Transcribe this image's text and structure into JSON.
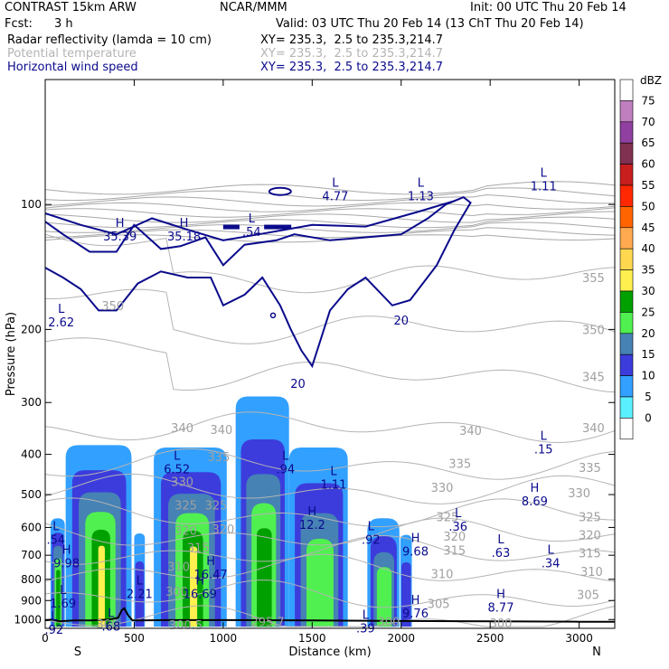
{
  "header": {
    "model": "CONTRAST 15km ARW",
    "center": "NCAR/MMM",
    "init": "Init: 00 UTC Thu 20 Feb 14",
    "fcst_label": "Fcst:",
    "fcst_value": "3 h",
    "valid": "Valid: 03 UTC Thu 20 Feb 14 (13 ChT Thu 20 Feb 14)",
    "fields": [
      {
        "name": "Radar reflectivity (lamda = 10 cm)",
        "xy": "XY= 235.3,  2.5 to 235.3,214.7",
        "color": "#000000"
      },
      {
        "name": "Potential temperature",
        "xy": "XY= 235.3,  2.5 to 235.3,214.7",
        "color": "#b4b4b4"
      },
      {
        "name": "Horizontal wind speed",
        "xy": "XY= 235.3,  2.5 to 235.3,214.7",
        "color": "#0a0a8c"
      }
    ]
  },
  "chart_data": {
    "type": "heatmap",
    "xlabel": "Distance (km)",
    "ylabel": "Pressure (hPa)",
    "x_ticks": [
      0,
      500,
      1000,
      1500,
      2000,
      2500,
      3000
    ],
    "y_ticks": [
      100,
      200,
      300,
      400,
      500,
      600,
      700,
      800,
      900,
      1000
    ],
    "xlim": [
      0,
      3200
    ],
    "ylim": [
      1050,
      50
    ],
    "y_scale": "log",
    "x_end_labels": {
      "left": "S",
      "right": "N"
    },
    "colorbar": {
      "unit": "dBZ",
      "ticks": [
        "75",
        "70",
        "65",
        "60",
        "55",
        "50",
        "45",
        "40",
        "35",
        "30",
        "25",
        "20",
        "15",
        "10",
        "5",
        "0"
      ],
      "colors": [
        "#ffffff",
        "#c080c0",
        "#9040a0",
        "#803050",
        "#c81e1e",
        "#ff2800",
        "#ff6400",
        "#ffaa50",
        "#ffd850",
        "#fff050",
        "#00a000",
        "#50f050",
        "#4682b4",
        "#3c3cdc",
        "#32a0ff",
        "#5af0ff",
        "#ffffff"
      ]
    },
    "reflectivity_columns": [
      {
        "x0": 30,
        "x1": 110,
        "p_top": 570,
        "max_dbz": 25
      },
      {
        "x0": 115,
        "x1": 485,
        "p_top": 380,
        "max_dbz": 30
      },
      {
        "x0": 500,
        "x1": 560,
        "p_top": 620,
        "max_dbz": 10
      },
      {
        "x0": 610,
        "x1": 1020,
        "p_top": 385,
        "max_dbz": 30
      },
      {
        "x0": 1070,
        "x1": 1370,
        "p_top": 290,
        "max_dbz": 25
      },
      {
        "x0": 1370,
        "x1": 1700,
        "p_top": 385,
        "max_dbz": 20
      },
      {
        "x0": 1810,
        "x1": 1990,
        "p_top": 570,
        "max_dbz": 20
      },
      {
        "x0": 1995,
        "x1": 2060,
        "p_top": 625,
        "max_dbz": 10
      }
    ],
    "theta_labels": [
      {
        "text": "355",
        "x": 3080,
        "p": 150
      },
      {
        "text": "350",
        "x": 3080,
        "p": 200
      },
      {
        "text": "350",
        "x": 380,
        "p": 175
      },
      {
        "text": "345",
        "x": 3080,
        "p": 260
      },
      {
        "text": "340",
        "x": 3080,
        "p": 345
      },
      {
        "text": "340",
        "x": 770,
        "p": 345
      },
      {
        "text": "340",
        "x": 990,
        "p": 348
      },
      {
        "text": "340",
        "x": 2390,
        "p": 350
      },
      {
        "text": "335",
        "x": 3060,
        "p": 430
      },
      {
        "text": "335",
        "x": 975,
        "p": 405
      },
      {
        "text": "335",
        "x": 2330,
        "p": 420
      },
      {
        "text": "330",
        "x": 3000,
        "p": 495
      },
      {
        "text": "330",
        "x": 770,
        "p": 465
      },
      {
        "text": "330",
        "x": 2230,
        "p": 480
      },
      {
        "text": "325",
        "x": 3060,
        "p": 565
      },
      {
        "text": "325",
        "x": 790,
        "p": 530
      },
      {
        "text": "325",
        "x": 960,
        "p": 530
      },
      {
        "text": "325",
        "x": 2260,
        "p": 565
      },
      {
        "text": "320",
        "x": 3060,
        "p": 625
      },
      {
        "text": "320",
        "x": 790,
        "p": 610
      },
      {
        "text": "320",
        "x": 1000,
        "p": 605
      },
      {
        "text": "320",
        "x": 2300,
        "p": 630
      },
      {
        "text": "315",
        "x": 3060,
        "p": 690
      },
      {
        "text": "315",
        "x": 860,
        "p": 670
      },
      {
        "text": "315",
        "x": 2300,
        "p": 680
      },
      {
        "text": "310",
        "x": 3070,
        "p": 765
      },
      {
        "text": "310",
        "x": 750,
        "p": 745
      },
      {
        "text": "310",
        "x": 2230,
        "p": 775
      },
      {
        "text": "305",
        "x": 3050,
        "p": 870
      },
      {
        "text": "305",
        "x": 2210,
        "p": 915
      },
      {
        "text": "300",
        "x": 740,
        "p": 855
      },
      {
        "text": "300",
        "x": 2560,
        "p": 1020
      },
      {
        "text": "300",
        "x": 1930,
        "p": 1010
      },
      {
        "text": "300.5",
        "x": 790,
        "p": 1030
      },
      {
        "text": "295.7",
        "x": 1250,
        "p": 1010
      },
      {
        "text": "300",
        "x": 350,
        "p": 1025
      }
    ],
    "wind_labels": [
      {
        "text": "20",
        "x": 2000,
        "p": 190
      },
      {
        "text": "20",
        "x": 1420,
        "p": 270
      }
    ],
    "extrema": [
      {
        "kind": "H",
        "value": "35.39",
        "x": 420,
        "p": 115
      },
      {
        "kind": "H",
        "value": "35.18",
        "x": 780,
        "p": 115
      },
      {
        "kind": "L",
        "value": ".54",
        "x": 1160,
        "p": 112
      },
      {
        "kind": "L",
        "value": "4.77",
        "x": 1630,
        "p": 92
      },
      {
        "kind": "L",
        "value": "1.13",
        "x": 2110,
        "p": 92
      },
      {
        "kind": "L",
        "value": "1.11",
        "x": 2800,
        "p": 87
      },
      {
        "kind": "L",
        "value": "2.62",
        "x": 90,
        "p": 185
      },
      {
        "kind": "L",
        "value": "6.52",
        "x": 740,
        "p": 418
      },
      {
        "kind": "L",
        "value": ".94",
        "x": 1350,
        "p": 418
      },
      {
        "kind": "L",
        "value": "1.11",
        "x": 1620,
        "p": 455
      },
      {
        "kind": "L",
        "value": ".15",
        "x": 2800,
        "p": 375
      },
      {
        "kind": "H",
        "value": "8.69",
        "x": 2750,
        "p": 500
      },
      {
        "kind": "H",
        "value": "12.2",
        "x": 1500,
        "p": 570
      },
      {
        "kind": "L",
        "value": ".36",
        "x": 2320,
        "p": 575
      },
      {
        "kind": "L",
        "value": ".92",
        "x": 1830,
        "p": 618
      },
      {
        "kind": "H",
        "value": "9.68",
        "x": 2080,
        "p": 660
      },
      {
        "kind": "L",
        "value": ".63",
        "x": 2560,
        "p": 665
      },
      {
        "kind": "L",
        "value": ".34",
        "x": 2840,
        "p": 705
      },
      {
        "kind": "L",
        "value": ".54",
        "x": 60,
        "p": 618
      },
      {
        "kind": "H",
        "value": "9.98",
        "x": 120,
        "p": 705
      },
      {
        "kind": "H",
        "value": "16.47",
        "x": 930,
        "p": 750
      },
      {
        "kind": "L",
        "value": "2.21",
        "x": 530,
        "p": 835
      },
      {
        "kind": "H",
        "value": "16.69",
        "x": 870,
        "p": 835
      },
      {
        "kind": "L",
        "value": "1.69",
        "x": 100,
        "p": 880
      },
      {
        "kind": "H",
        "value": "8.77",
        "x": 2560,
        "p": 900
      },
      {
        "kind": "H",
        "value": "9.76",
        "x": 2080,
        "p": 930
      },
      {
        "kind": "L",
        "value": ".68",
        "x": 370,
        "p": 1000
      },
      {
        "kind": "L",
        "value": ".39",
        "x": 1800,
        "p": 1010
      },
      {
        "kind": "L",
        "value": ".92",
        "x": 50,
        "p": 1020
      }
    ],
    "terrain": [
      [
        0,
        1005
      ],
      [
        40,
        1000
      ],
      [
        80,
        1010
      ],
      [
        160,
        1005
      ],
      [
        260,
        1005
      ],
      [
        360,
        1000
      ],
      [
        410,
        990
      ],
      [
        430,
        950
      ],
      [
        445,
        940
      ],
      [
        465,
        975
      ],
      [
        490,
        1005
      ],
      [
        530,
        1005
      ],
      [
        700,
        1003
      ],
      [
        1000,
        1003
      ],
      [
        1500,
        1005
      ],
      [
        2000,
        1008
      ],
      [
        2500,
        1010
      ],
      [
        3000,
        1012
      ],
      [
        3200,
        1013
      ]
    ]
  }
}
